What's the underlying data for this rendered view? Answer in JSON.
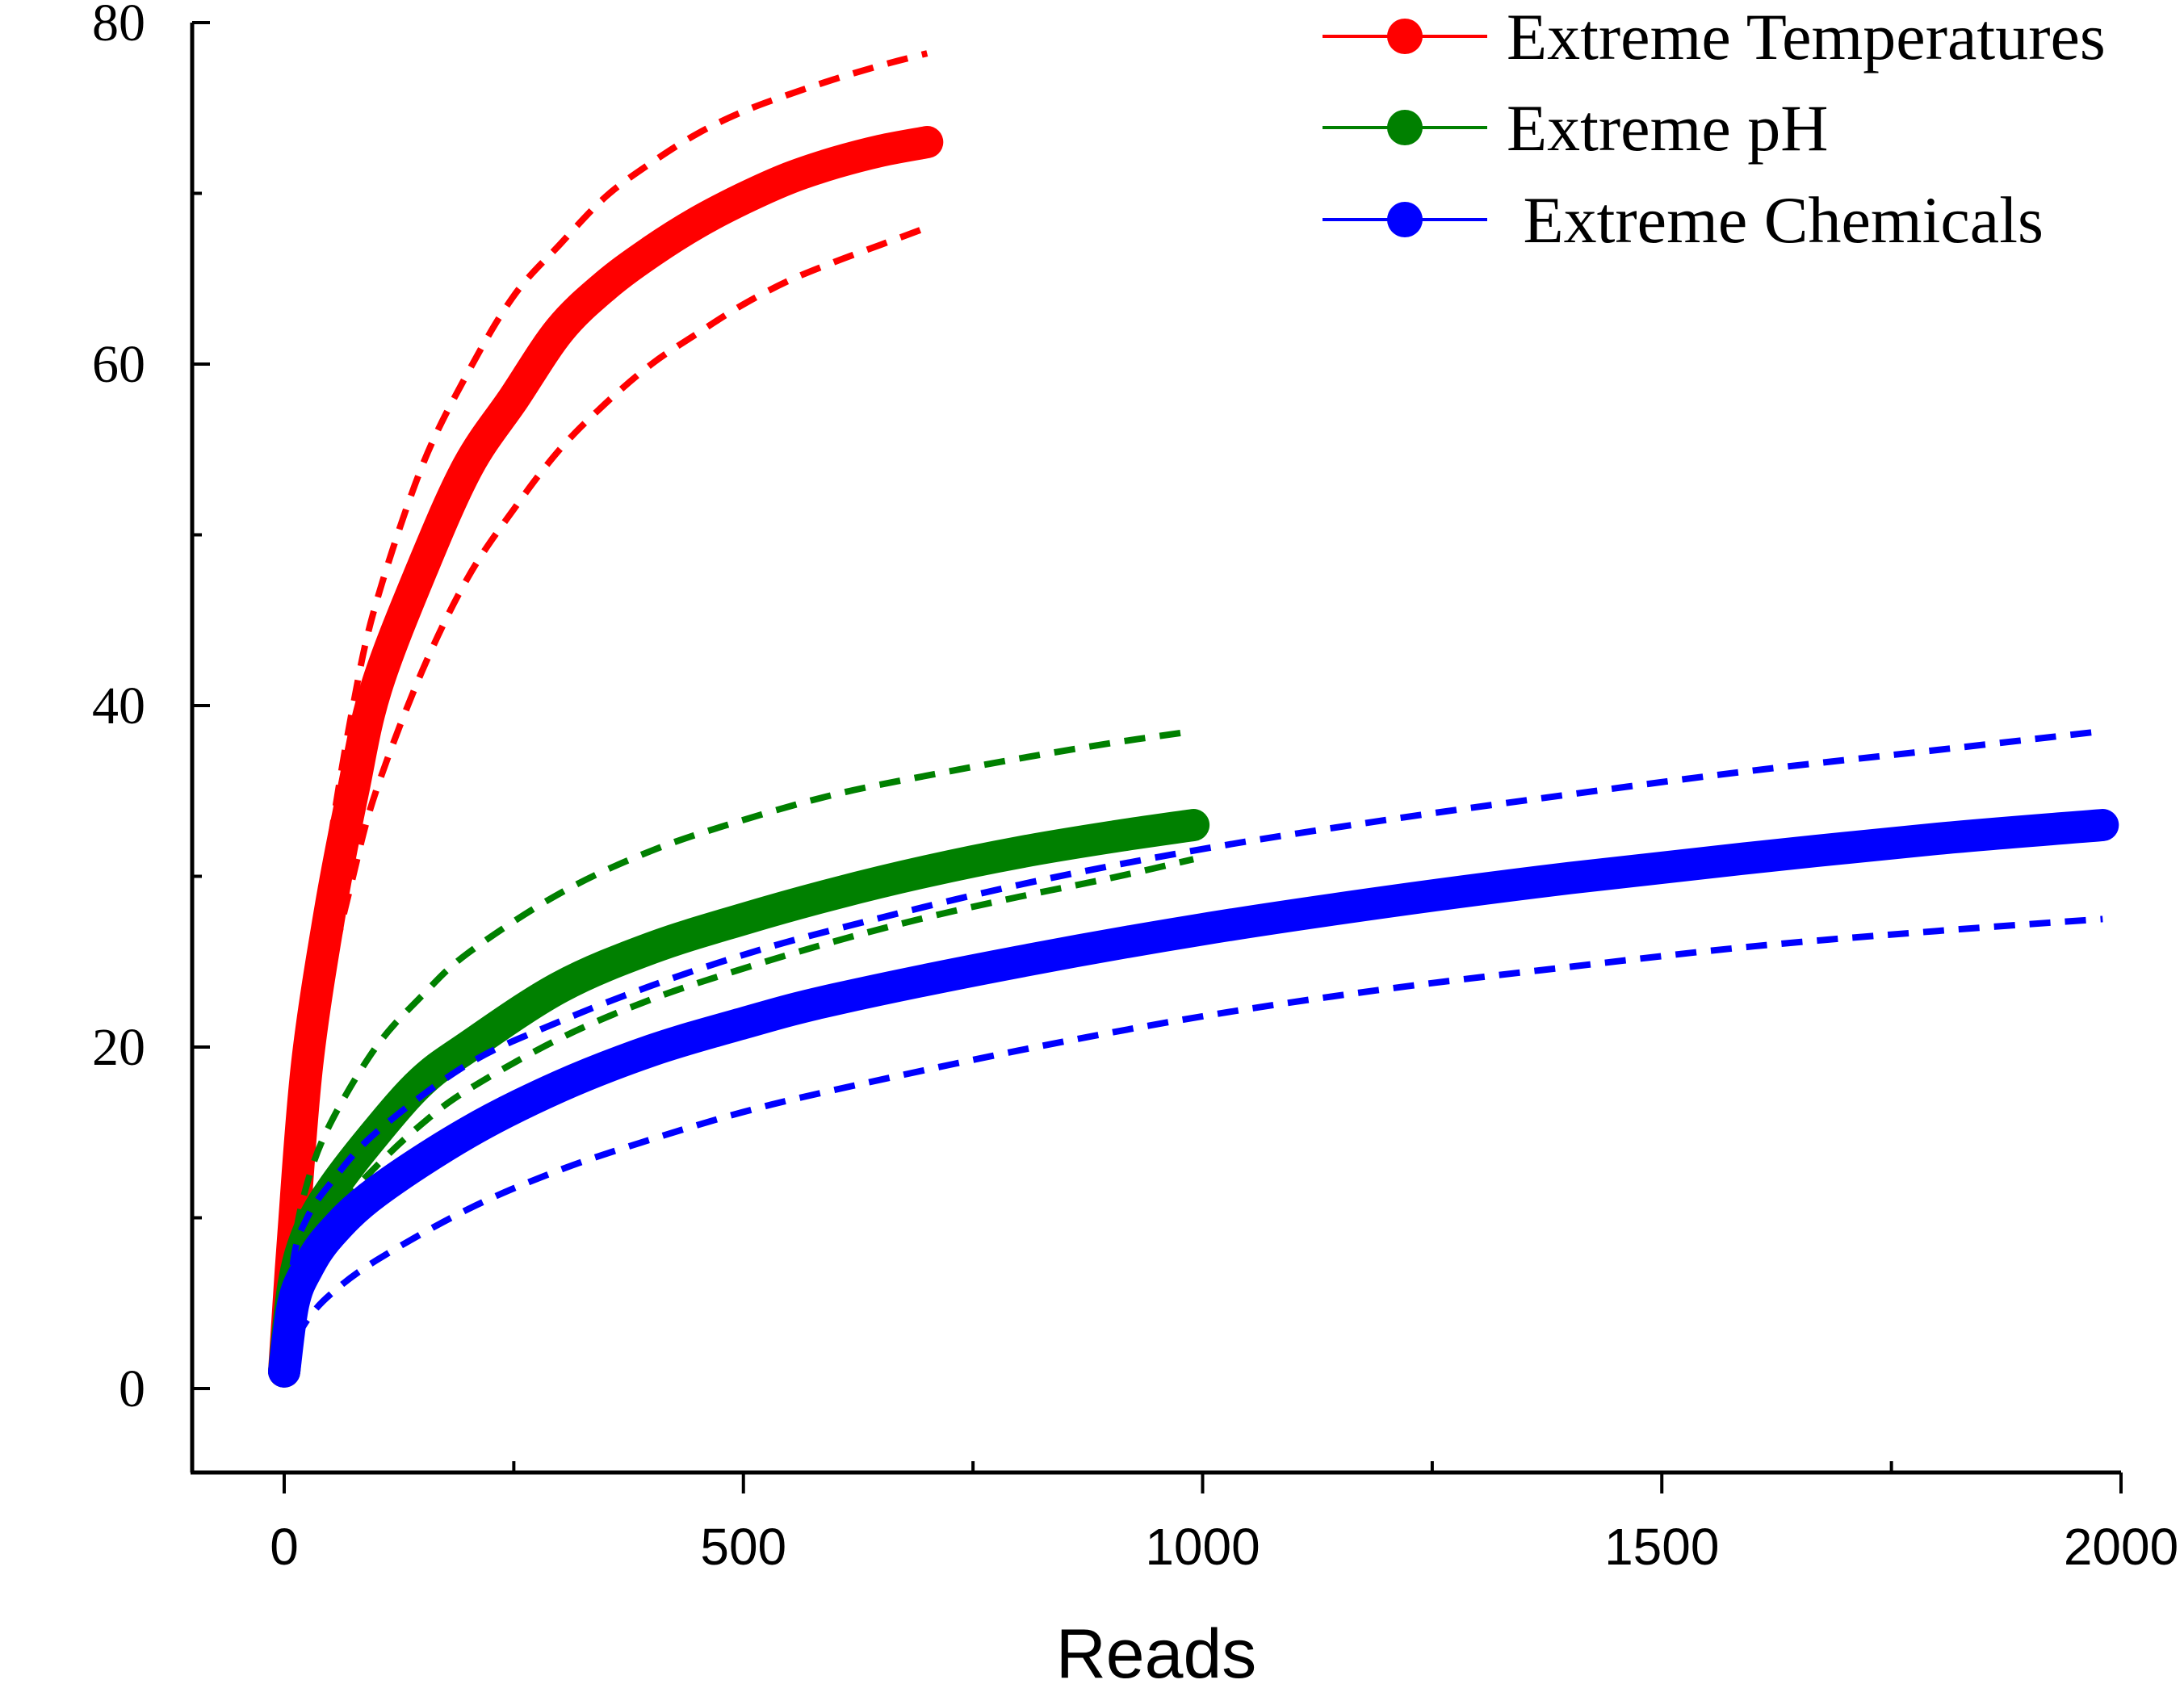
{
  "chart_data": {
    "type": "line",
    "title": "",
    "xlabel": "Reads",
    "ylabel": "",
    "xlim": [
      -100,
      2000
    ],
    "ylim": [
      -5,
      80
    ],
    "x_ticks": [
      0,
      500,
      1000,
      1500,
      2000
    ],
    "x_minor_ticks": [
      250,
      750,
      1250,
      1750
    ],
    "y_ticks": [
      0,
      20,
      40,
      60,
      80
    ],
    "y_minor_ticks": [
      10,
      30,
      50,
      70
    ],
    "grid": false,
    "legend_position": "top-right",
    "series": [
      {
        "name": "Extreme Temperatures",
        "color": "#ff0000",
        "x": [
          0,
          10,
          25,
          50,
          75,
          100,
          150,
          200,
          250,
          300,
          350,
          400,
          450,
          500,
          550,
          600,
          650,
          700
        ],
        "y": [
          1,
          9,
          19,
          28,
          35,
          41,
          48,
          54,
          58,
          62,
          64.6,
          66.6,
          68.3,
          69.7,
          70.9,
          71.8,
          72.5,
          73
        ],
        "upper": [
          1,
          11,
          22,
          32,
          40,
          46,
          54,
          59.5,
          64,
          67,
          69.8,
          71.8,
          73.5,
          74.8,
          75.8,
          76.7,
          77.5,
          78.2
        ],
        "lower": [
          1,
          7,
          15,
          24,
          30,
          35,
          42,
          47.5,
          51.5,
          55,
          57.7,
          60,
          61.8,
          63.5,
          64.9,
          66,
          67,
          68
        ]
      },
      {
        "name": "Extreme pH",
        "color": "#008000",
        "x": [
          0,
          10,
          25,
          50,
          100,
          150,
          200,
          300,
          400,
          500,
          600,
          700,
          800,
          900,
          990
        ],
        "y": [
          1,
          6,
          9,
          11.5,
          15,
          18,
          20,
          23.5,
          25.8,
          27.5,
          29,
          30.3,
          31.4,
          32.3,
          33
        ],
        "upper": [
          1,
          8,
          12,
          15.5,
          20,
          23,
          25.5,
          29,
          31.5,
          33.3,
          34.8,
          35.9,
          36.9,
          37.8,
          38.5
        ],
        "lower": [
          1,
          4,
          7,
          10,
          13,
          15.5,
          17.5,
          20.5,
          22.8,
          24.6,
          26.2,
          27.6,
          28.8,
          29.9,
          31
        ]
      },
      {
        "name": " Extreme Chemicals",
        "color": "#0000ff",
        "x": [
          0,
          10,
          25,
          50,
          100,
          200,
          300,
          400,
          500,
          600,
          800,
          1000,
          1200,
          1400,
          1600,
          1800,
          1980
        ],
        "y": [
          1,
          5,
          7,
          9,
          11.5,
          15,
          17.7,
          19.8,
          21.4,
          22.8,
          25,
          26.9,
          28.5,
          29.9,
          31.1,
          32.2,
          33
        ],
        "upper": [
          1,
          7.5,
          10,
          12,
          15,
          19,
          21.5,
          23.6,
          25.4,
          26.9,
          29.5,
          31.6,
          33.3,
          34.8,
          36.2,
          37.4,
          38.5
        ],
        "lower": [
          1,
          2.5,
          4,
          5.5,
          7.5,
          10.5,
          12.8,
          14.6,
          16.2,
          17.5,
          19.8,
          21.8,
          23.4,
          24.7,
          25.9,
          26.8,
          27.5
        ]
      }
    ]
  }
}
